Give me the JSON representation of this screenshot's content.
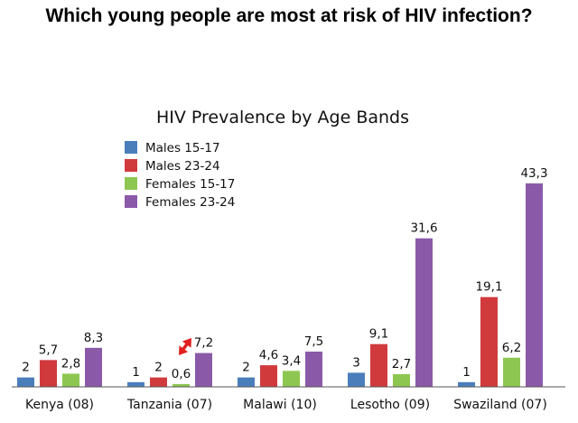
{
  "page_title": "Which young people are most at risk of HIV infection?",
  "chart_data": {
    "type": "bar",
    "title": "HIV Prevalence by Age Bands",
    "categories": [
      "Kenya (08)",
      "Tanzania (07)",
      "Malawi (10)",
      "Lesotho (09)",
      "Swaziland (07)"
    ],
    "series": [
      {
        "name": "Males 15-17",
        "color": "#4a7ebb",
        "values": [
          2,
          1,
          2,
          3,
          1
        ],
        "labels": [
          "2",
          "1",
          "2",
          "3",
          "1"
        ]
      },
      {
        "name": "Males 23-24",
        "color": "#d03a3d",
        "values": [
          5.7,
          2,
          4.6,
          9.1,
          19.1
        ],
        "labels": [
          "5,7",
          "2",
          "4,6",
          "9,1",
          "19,1"
        ]
      },
      {
        "name": "Females 15-17",
        "color": "#8dc751",
        "values": [
          2.8,
          0.6,
          3.4,
          2.7,
          6.2
        ],
        "labels": [
          "2,8",
          "0,6",
          "3,4",
          "2,7",
          "6,2"
        ]
      },
      {
        "name": "Females 23-24",
        "color": "#8a5aa8",
        "values": [
          8.3,
          7.2,
          7.5,
          31.6,
          43.3
        ],
        "labels": [
          "8,3",
          "7,2",
          "7,5",
          "31,6",
          "43,3"
        ]
      }
    ],
    "ylim": [
      0,
      45
    ],
    "grid": false,
    "legend": "top-left",
    "xlabel": "",
    "ylabel": "",
    "annotation": {
      "type": "double-arrow",
      "color": "#e0201f",
      "category": "Tanzania (07)"
    }
  }
}
